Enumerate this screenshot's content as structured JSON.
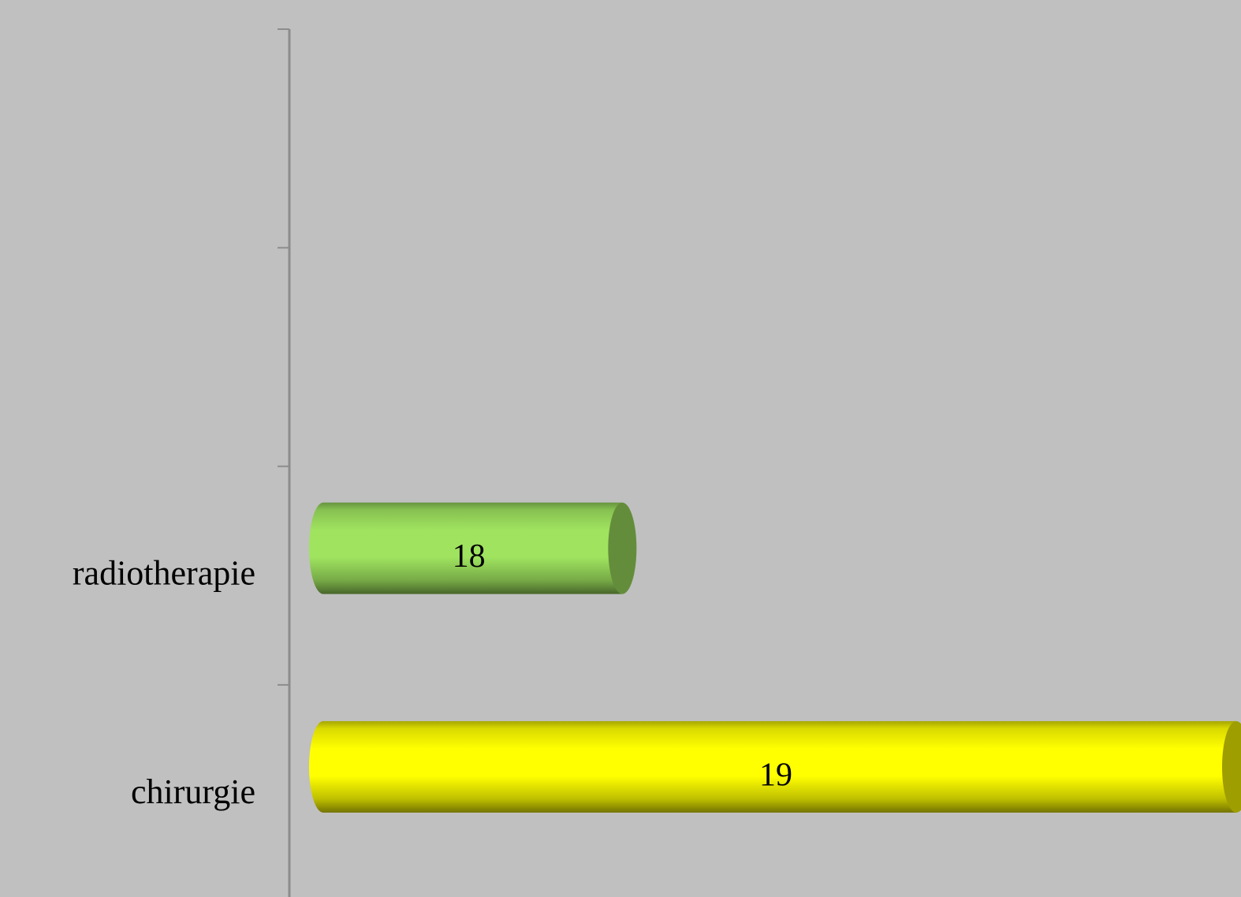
{
  "chart_data": {
    "type": "bar",
    "orientation": "horizontal",
    "categories": [
      null,
      null,
      "radiotherapie",
      "chirurgie"
    ],
    "values": [
      null,
      null,
      18,
      19
    ],
    "colors": [
      null,
      null,
      "#9fe35f",
      "#ffff00"
    ],
    "xlim": [
      17.5,
      19
    ]
  }
}
